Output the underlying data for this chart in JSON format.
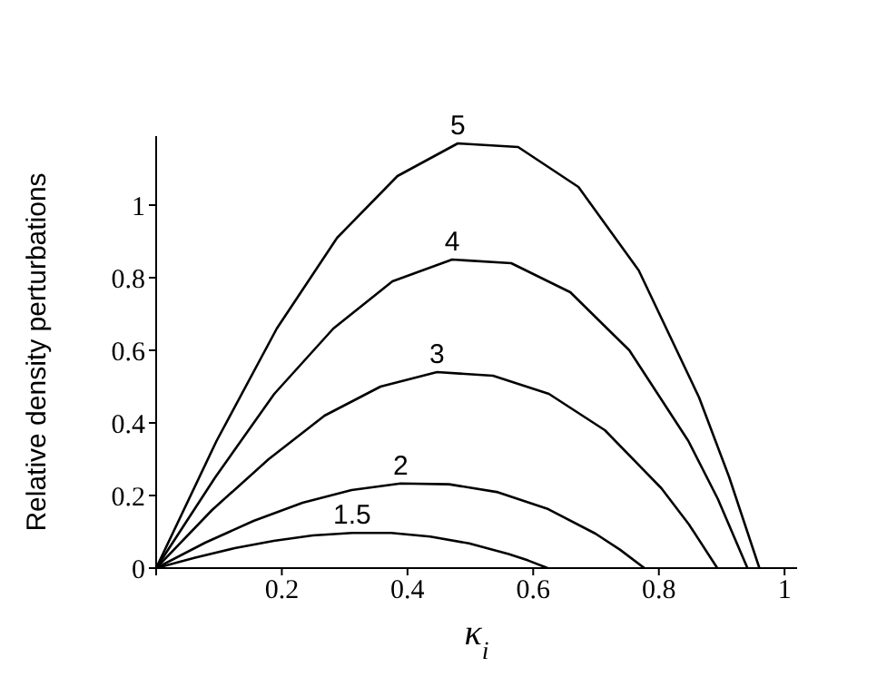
{
  "chart_data": {
    "type": "line",
    "xlabel": "κ$_{i}$",
    "ylabel": "Relative density perturbations",
    "xlim": [
      0,
      1.02
    ],
    "ylim": [
      0,
      1.19
    ],
    "xticks": [
      {
        "value": 0,
        "label": null
      },
      0.2,
      0.4,
      0.6,
      0.8,
      1
    ],
    "yticks": [
      0,
      0.2,
      0.4,
      0.6,
      0.8,
      1
    ],
    "grid": false,
    "legend": false,
    "marker": "none",
    "line_style": "solid",
    "series": [
      {
        "name": "5",
        "color": "#000000",
        "x": [
          0,
          0.096,
          0.192,
          0.288,
          0.384,
          0.48,
          0.576,
          0.672,
          0.768,
          0.864,
          0.912,
          0.96
        ],
        "values": [
          0,
          0.35,
          0.66,
          0.91,
          1.08,
          1.17,
          1.16,
          1.05,
          0.82,
          0.47,
          0.25,
          0
        ]
      },
      {
        "name": "4",
        "color": "#000000",
        "x": [
          0,
          0.094,
          0.188,
          0.282,
          0.376,
          0.471,
          0.565,
          0.659,
          0.753,
          0.847,
          0.894,
          0.941
        ],
        "values": [
          0,
          0.25,
          0.48,
          0.66,
          0.79,
          0.85,
          0.84,
          0.76,
          0.6,
          0.35,
          0.19,
          0
        ]
      },
      {
        "name": "3",
        "color": "#000000",
        "x": [
          0,
          0.089,
          0.179,
          0.268,
          0.357,
          0.447,
          0.536,
          0.625,
          0.714,
          0.804,
          0.848,
          0.893
        ],
        "values": [
          0,
          0.16,
          0.3,
          0.42,
          0.5,
          0.54,
          0.53,
          0.48,
          0.38,
          0.22,
          0.12,
          0
        ]
      },
      {
        "name": "2",
        "color": "#000000",
        "x": [
          0,
          0.078,
          0.155,
          0.233,
          0.311,
          0.389,
          0.466,
          0.544,
          0.622,
          0.699,
          0.738,
          0.777
        ],
        "values": [
          0,
          0.07,
          0.13,
          0.18,
          0.215,
          0.233,
          0.231,
          0.209,
          0.164,
          0.095,
          0.051,
          0
        ]
      },
      {
        "name": "1.5",
        "color": "#000000",
        "x": [
          0,
          0.062,
          0.125,
          0.187,
          0.249,
          0.312,
          0.374,
          0.436,
          0.498,
          0.561,
          0.592,
          0.623
        ],
        "values": [
          0,
          0.029,
          0.055,
          0.075,
          0.09,
          0.097,
          0.097,
          0.087,
          0.068,
          0.039,
          0.021,
          0
        ]
      }
    ]
  }
}
